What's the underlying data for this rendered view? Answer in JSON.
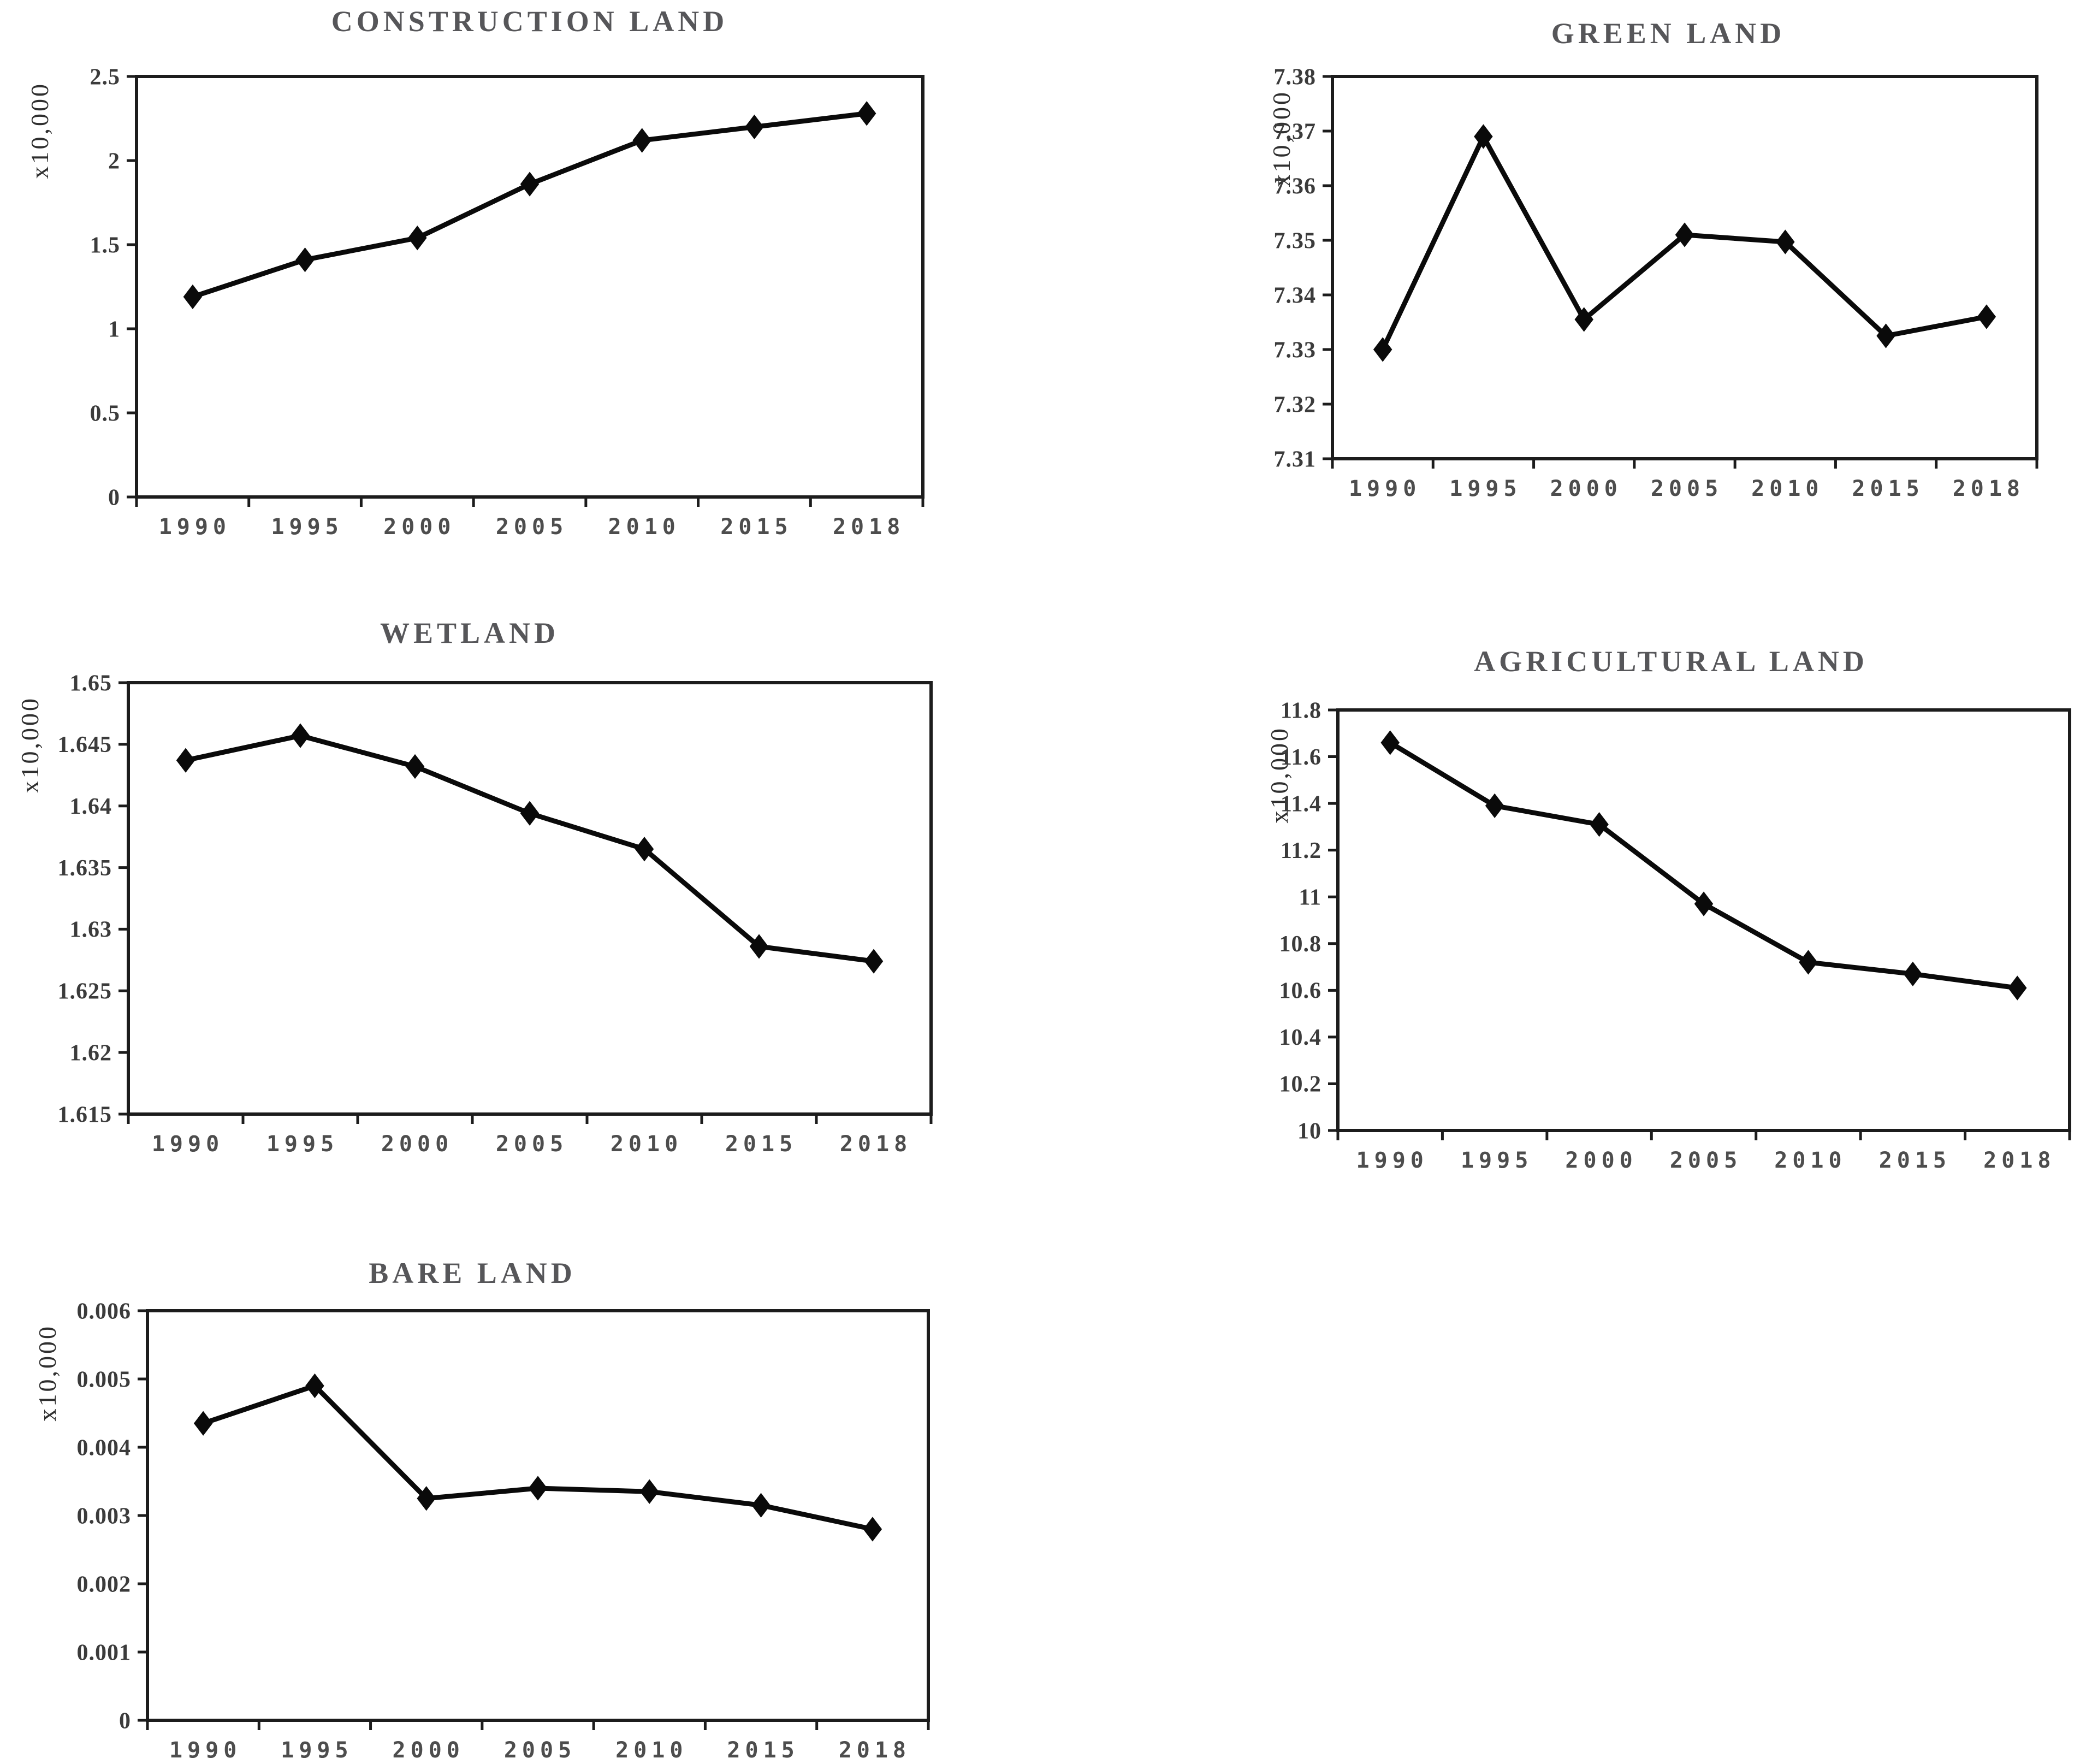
{
  "page": {
    "background_color": "#ffffff",
    "description_labels": {
      "unit": "x10,000"
    }
  },
  "colors": {
    "line": "#0a0a0a",
    "marker": "#0a0a0a",
    "axis": "#1c1c1c",
    "title": "#565659",
    "ytick_label": "#3b3b3b",
    "xtick_label": "#4d4d4d",
    "unit_label": "#2f2f2f"
  },
  "chart_data": [
    {
      "type": "line",
      "title": "CONSTRUCTION LAND",
      "unit_label": "x10,000",
      "xlabel": "",
      "ylabel": "x10,000",
      "categories": [
        "1990",
        "1995",
        "2000",
        "2005",
        "2010",
        "2015",
        "2018"
      ],
      "values": [
        1.19,
        1.41,
        1.54,
        1.86,
        2.12,
        2.2,
        2.28
      ],
      "ylim": [
        0,
        2.5
      ],
      "ytick_values": [
        2.5,
        2,
        1.5,
        1,
        0.5,
        0
      ],
      "ytick_labels": [
        "2.5",
        "2",
        "1.5",
        "1",
        "0.5",
        "0"
      ],
      "grid": false,
      "legend": "none",
      "marker": "diamond"
    },
    {
      "type": "line",
      "title": "GREEN LAND",
      "unit_label": "x10,000",
      "xlabel": "",
      "ylabel": "x10,000",
      "categories": [
        "1990",
        "1995",
        "2000",
        "2005",
        "2010",
        "2015",
        "2018"
      ],
      "values": [
        7.33,
        7.369,
        7.3355,
        7.351,
        7.3497,
        7.3325,
        7.336
      ],
      "ylim": [
        7.31,
        7.38
      ],
      "ytick_values": [
        7.38,
        7.37,
        7.36,
        7.35,
        7.34,
        7.33,
        7.32,
        7.31
      ],
      "ytick_labels": [
        "7.38",
        "7.37",
        "7.36",
        "7.35",
        "7.34",
        "7.33",
        "7.32",
        "7.31"
      ],
      "grid": false,
      "legend": "none",
      "marker": "diamond"
    },
    {
      "type": "line",
      "title": "WETLAND",
      "unit_label": "x10,000",
      "xlabel": "",
      "ylabel": "x10,000",
      "categories": [
        "1990",
        "1995",
        "2000",
        "2005",
        "2010",
        "2015",
        "2018"
      ],
      "values": [
        1.6437,
        1.6457,
        1.6432,
        1.6394,
        1.6365,
        1.6286,
        1.6274
      ],
      "ylim": [
        1.615,
        1.65
      ],
      "ytick_values": [
        1.65,
        1.645,
        1.64,
        1.635,
        1.63,
        1.625,
        1.62,
        1.615
      ],
      "ytick_labels": [
        "1.65",
        "1.645",
        "1.64",
        "1.635",
        "1.63",
        "1.625",
        "1.62",
        "1.615"
      ],
      "grid": false,
      "legend": "none",
      "marker": "diamond"
    },
    {
      "type": "line",
      "title": "AGRICULTURAL LAND",
      "unit_label": "x10,000",
      "xlabel": "",
      "ylabel": "x10,000",
      "categories": [
        "1990",
        "1995",
        "2000",
        "2005",
        "2010",
        "2015",
        "2018"
      ],
      "values": [
        11.66,
        11.39,
        11.31,
        10.97,
        10.72,
        10.67,
        10.61
      ],
      "ylim": [
        10,
        11.8
      ],
      "ytick_values": [
        11.8,
        11.6,
        11.4,
        11.2,
        11,
        10.8,
        10.6,
        10.4,
        10.2,
        10
      ],
      "ytick_labels": [
        "11.8",
        "11.6",
        "11.4",
        "11.2",
        "11",
        "10.8",
        "10.6",
        "10.4",
        "10.2",
        "10"
      ],
      "grid": false,
      "legend": "none",
      "marker": "diamond"
    },
    {
      "type": "line",
      "title": "BARE LAND",
      "unit_label": "x10,000",
      "xlabel": "",
      "ylabel": "x10,000",
      "categories": [
        "1990",
        "1995",
        "2000",
        "2005",
        "2010",
        "2015",
        "2018"
      ],
      "values": [
        0.00435,
        0.0049,
        0.00325,
        0.0034,
        0.00335,
        0.00315,
        0.0028
      ],
      "ylim": [
        0,
        0.006
      ],
      "ytick_values": [
        0.006,
        0.005,
        0.004,
        0.003,
        0.002,
        0.001,
        0
      ],
      "ytick_labels": [
        "0.006",
        "0.005",
        "0.004",
        "0.003",
        "0.002",
        "0.001",
        "0"
      ],
      "grid": false,
      "legend": "none",
      "marker": "diamond"
    }
  ]
}
